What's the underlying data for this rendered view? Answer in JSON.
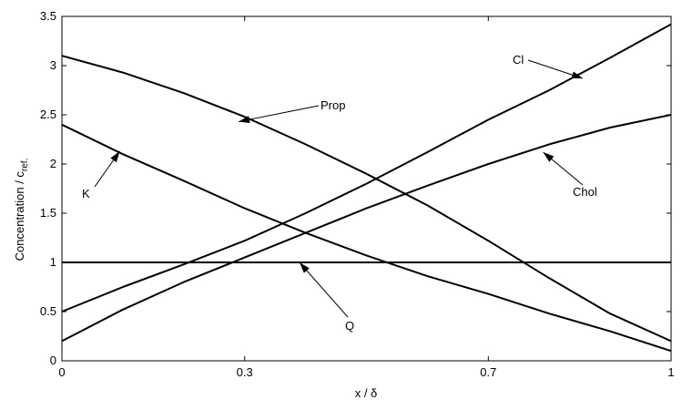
{
  "chart_data": {
    "type": "line",
    "title": "",
    "xlabel": "x / δ",
    "ylabel_main": "Concentration / c",
    "ylabel_sub": "ref.",
    "xlim": [
      0,
      1
    ],
    "ylim": [
      0,
      3.5
    ],
    "x_ticks": [
      0,
      0.3,
      0.7,
      1
    ],
    "x_tick_labels": [
      "0",
      "0.3",
      "0.7",
      "1"
    ],
    "y_ticks": [
      0,
      0.5,
      1,
      1.5,
      2,
      2.5,
      3,
      3.5
    ],
    "y_tick_labels": [
      "0",
      "0.5",
      "1",
      "1.5",
      "2",
      "2.5",
      "3",
      "3.5"
    ],
    "grid": false,
    "series": [
      {
        "name": "Prop",
        "x": [
          0,
          0.1,
          0.2,
          0.3,
          0.4,
          0.5,
          0.6,
          0.7,
          0.8,
          0.9,
          1.0
        ],
        "y": [
          3.1,
          2.93,
          2.72,
          2.48,
          2.2,
          1.9,
          1.58,
          1.22,
          0.84,
          0.48,
          0.2
        ]
      },
      {
        "name": "K",
        "x": [
          0,
          0.1,
          0.2,
          0.3,
          0.4,
          0.5,
          0.6,
          0.7,
          0.8,
          0.9,
          1.0
        ],
        "y": [
          2.4,
          2.1,
          1.83,
          1.55,
          1.3,
          1.07,
          0.86,
          0.68,
          0.48,
          0.3,
          0.1
        ]
      },
      {
        "name": "Cl",
        "x": [
          0,
          0.1,
          0.2,
          0.3,
          0.4,
          0.5,
          0.6,
          0.7,
          0.8,
          0.9,
          1.0
        ],
        "y": [
          0.5,
          0.75,
          0.98,
          1.22,
          1.5,
          1.8,
          2.12,
          2.45,
          2.75,
          3.08,
          3.42
        ]
      },
      {
        "name": "Chol",
        "x": [
          0,
          0.1,
          0.2,
          0.3,
          0.4,
          0.5,
          0.6,
          0.7,
          0.8,
          0.9,
          1.0
        ],
        "y": [
          0.2,
          0.52,
          0.8,
          1.05,
          1.3,
          1.55,
          1.78,
          2.0,
          2.2,
          2.37,
          2.5
        ]
      },
      {
        "name": "Q",
        "x": [
          0,
          1
        ],
        "y": [
          1.0,
          1.0
        ]
      }
    ],
    "annotations": [
      {
        "text": "Prop",
        "points_to": [
          0.29,
          2.43
        ]
      },
      {
        "text": "K",
        "points_to": [
          0.095,
          2.13
        ]
      },
      {
        "text": "Cl",
        "points_to": [
          0.855,
          2.87
        ]
      },
      {
        "text": "Chol",
        "points_to": [
          0.79,
          2.12
        ]
      },
      {
        "text": "Q",
        "points_to": [
          0.39,
          1.0
        ]
      }
    ]
  }
}
